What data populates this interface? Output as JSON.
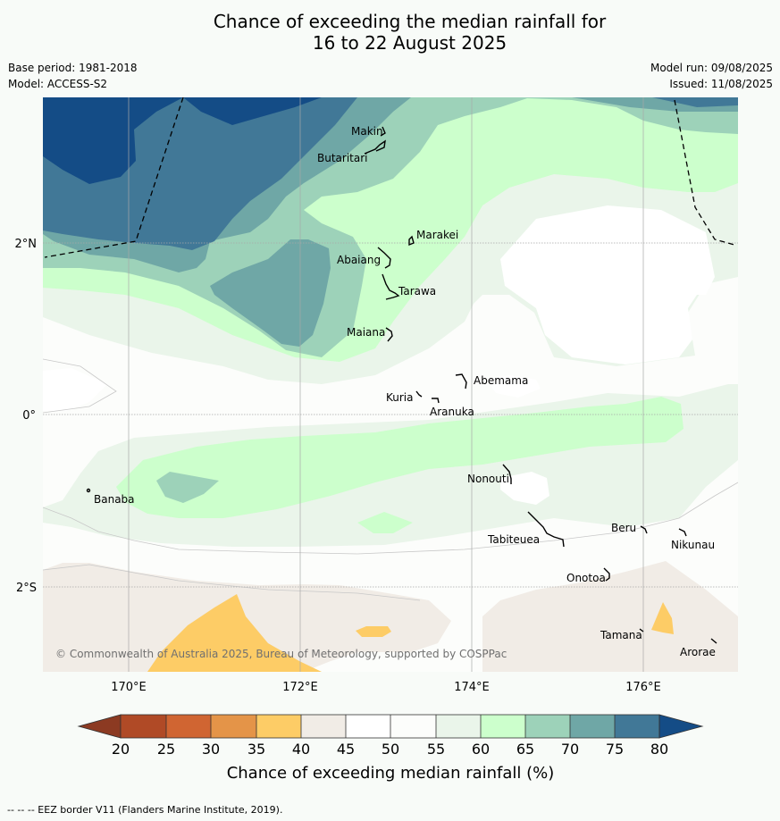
{
  "title_line1": "Chance of exceeding the median rainfall for",
  "title_line2": "16 to 22 August 2025",
  "base_period": "Base period: 1981-2018",
  "model": "Model: ACCESS-S2",
  "model_run": "Model run: 09/08/2025",
  "issued": "Issued: 11/08/2025",
  "copyright": "© Commonwealth of Australia 2025, Bureau of Meteorology, supported by COSPPac",
  "footer": "--  --  -- EEZ border V11 (Flanders Marine Institute, 2019).",
  "axes": {
    "x_ticks": [
      "170°E",
      "172°E",
      "174°E",
      "176°E"
    ],
    "y_ticks": [
      "2°N",
      "0°",
      "2°S"
    ]
  },
  "places": [
    "Makin",
    "Butaritari",
    "Marakei",
    "Abaiang",
    "Tarawa",
    "Maiana",
    "Abemama",
    "Kuria",
    "Aranuka",
    "Banaba",
    "Nonouti",
    "Beru",
    "Nikunau",
    "Tabiteuea",
    "Onotoa",
    "Tamana",
    "Arorae"
  ],
  "colorbar": {
    "title": "Chance of exceeding median rainfall (%)",
    "ticks": [
      "20",
      "25",
      "30",
      "35",
      "40",
      "45",
      "50",
      "55",
      "60",
      "65",
      "70",
      "75",
      "80"
    ],
    "colors": {
      "below_20": "#8c3a22",
      "20-25": "#b04a26",
      "25-30": "#d06532",
      "30-35": "#e49448",
      "35-40": "#fdcc66",
      "40-45": "#f1ece6",
      "45-50": "#ffffff",
      "50-55": "#fcfdfb",
      "55-60": "#eaf5ea",
      "60-65": "#ccffcc",
      "65-70": "#9dd2b9",
      "70-75": "#6fa7a6",
      "75-80": "#417897",
      "above_80": "#144c86"
    }
  }
}
